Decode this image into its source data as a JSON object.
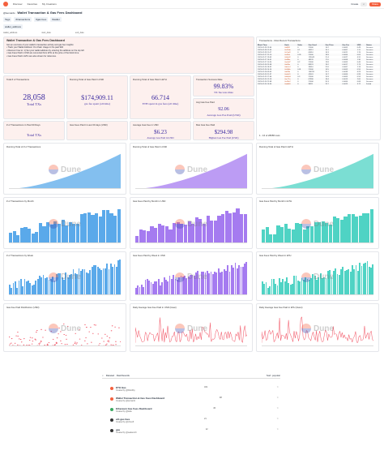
{
  "topbar": {
    "nav": [
      "Discover",
      "Favorites",
      "My Creations"
    ],
    "right": [
      "Create",
      "Share"
    ]
  },
  "header": {
    "author": "@leonardo",
    "title": "Wallet Transaction & Gas Fees Dashboard",
    "tags": [
      "Tags",
      "#transactions",
      "#gas fees",
      "#wallet"
    ],
    "params_label": "wallet_address"
  },
  "filters": [
    "wallet_address",
    "start_date",
    "end_date"
  ],
  "intro": {
    "title": "Wallet Transaction & Gas Fees Dashboard",
    "lines": [
      "Get an overview of your wallet's transaction activity and gas fee insights:",
      "• Track your Wallet Address' On-Chain Usage in the past 90d",
      "• Discover how to: 1) Set your wallet address by entering the address on the top left",
      "• Gas Fees Paid in USD are converted from ETH at the price of the block time",
      "• Gas Fees Paid in ETH are also shown for reference."
    ]
  },
  "kpis": [
    {
      "label": "Total # of Transactions",
      "value": "28,058",
      "sub": "Total TXs"
    },
    {
      "label": "Running Total of Gas Paid in USD",
      "value": "$174,909.11",
      "sub": "gas fee spent (all time)"
    },
    {
      "label": "Running Total of Gas Paid in ETH",
      "value": "66.714",
      "sub": "ETH spent in gas fees (all time)"
    },
    {
      "label": "Transaction Success Rate",
      "value": "99.83%",
      "sub": "TX Success Rate"
    },
    {
      "label": "Avg Gas Fee Paid",
      "value": "92.06",
      "sub": "Average Gas Fee Paid (USD)"
    },
    {
      "label": "Max Gas Fee Paid",
      "value": "$294.98",
      "sub": "Highest Gas Fee Paid (USD)"
    },
    {
      "label": "# of Transactions in Past 90 Days",
      "value": "",
      "sub": "Total TXs"
    },
    {
      "label": "Gas Fees Paid in Last 30 days (USD)",
      "value": "",
      "sub": ""
    },
    {
      "label": "Average Gas Fee in USD",
      "value": "$6.23",
      "sub": "Average Gas Paid in USD"
    }
  ],
  "table": {
    "title": "Transactions - Most Recent Transactions",
    "headers": [
      "Block Time",
      "Hash",
      "Value",
      "Gas Used",
      "Gas Price",
      "Gas Fee",
      "USD",
      "Status"
    ],
    "rows": [
      [
        "2023-02-28 13:04",
        "0x89f1",
        "0",
        "21000",
        "14.2",
        "0.0003",
        "0.49",
        "Success"
      ],
      [
        "2023-02-28 12:55",
        "0x12ab",
        "0.1",
        "44212",
        "15.1",
        "0.0007",
        "1.11",
        "Success"
      ],
      [
        "2023-02-28 11:47",
        "0x7cd3",
        "0",
        "65010",
        "16.3",
        "0.0011",
        "1.76",
        "Success"
      ],
      [
        "2023-02-27 22:10",
        "0x33ef",
        "0.05",
        "21000",
        "18.9",
        "0.0004",
        "0.63",
        "Success"
      ],
      [
        "2023-02-27 19:03",
        "0x9a02",
        "0",
        "125043",
        "21.4",
        "0.0027",
        "4.31",
        "Success"
      ],
      [
        "2023-02-27 16:51",
        "0x48bc",
        "0",
        "48120",
        "17.0",
        "0.0008",
        "1.30",
        "Success"
      ],
      [
        "2023-02-27 10:24",
        "0xe5d7",
        "0.2",
        "21000",
        "13.8",
        "0.0003",
        "0.46",
        "Success"
      ],
      [
        "2023-02-26 23:58",
        "0x06fa",
        "0",
        "89331",
        "19.2",
        "0.0017",
        "2.73",
        "Success"
      ],
      [
        "2023-02-26 18:32",
        "0xb1c4",
        "0",
        "33010",
        "22.6",
        "0.0007",
        "1.19",
        "Success"
      ],
      [
        "2023-02-26 14:14",
        "0x2d8e",
        "0.01",
        "21000",
        "16.5",
        "0.0003",
        "0.55",
        "Success"
      ],
      [
        "2023-02-26 09:45",
        "0xf09b",
        "0",
        "156220",
        "25.1",
        "0.0039",
        "6.29",
        "Success"
      ],
      [
        "2023-02-25 21:37",
        "0x4e51",
        "0",
        "42001",
        "14.7",
        "0.0006",
        "0.99",
        "Success"
      ],
      [
        "2023-02-25 17:06",
        "0x8a3d",
        "0.3",
        "21000",
        "15.9",
        "0.0003",
        "0.53",
        "Success"
      ],
      [
        "2023-02-25 12:19",
        "0xc77a",
        "0",
        "67990",
        "18.4",
        "0.0013",
        "2.00",
        "Success"
      ],
      [
        "2023-02-24 22:48",
        "0x19e2",
        "0",
        "21000",
        "20.3",
        "0.0004",
        "0.68",
        "Success"
      ],
      [
        "2023-02-24 16:30",
        "0xdb60",
        "0",
        "98111",
        "23.7",
        "0.0023",
        "3.72",
        "Failed"
      ]
    ],
    "footer": "1 - 16 of 28058 rows"
  },
  "charts": [
    {
      "title": "Running Total of # of Transactions",
      "color": "#5aa9ea",
      "kind": "area"
    },
    {
      "title": "Running Total of Gas Paid in USD",
      "color": "#a57bf0",
      "kind": "area"
    },
    {
      "title": "Running Total of Gas Paid in ETH",
      "color": "#4fd3c4",
      "kind": "area"
    },
    {
      "title": "# of Transactions by Month",
      "color": "#5aa9ea",
      "kind": "bar"
    },
    {
      "title": "Gas Fees Paid by Month in USD",
      "color": "#a57bf0",
      "kind": "bar"
    },
    {
      "title": "Gas Fees Paid by Month in ETH",
      "color": "#4fd3c4",
      "kind": "bar"
    },
    {
      "title": "# of Transactions by Week",
      "color": "#5aa9ea",
      "kind": "bar"
    },
    {
      "title": "Gas Fees Paid by Week in USD",
      "color": "#a57bf0",
      "kind": "bar"
    },
    {
      "title": "Gas Fees Paid by Week in ETH",
      "color": "#4fd3c4",
      "kind": "bar"
    },
    {
      "title": "Gas Fee Paid Distribution (USD)",
      "color": "#f25a6a",
      "kind": "scatter"
    },
    {
      "title": "Daily Average Gas Fee Paid in USD (Gwei)",
      "color": "#f25a6a",
      "kind": "line"
    },
    {
      "title": "Daily Average Gas Fee Paid in ETH (Gwei)",
      "color": "#f25a6a",
      "kind": "line"
    }
  ],
  "watermark": "Dune",
  "search": {
    "placeholder": "Related · Dashboards",
    "sort": "Sort: popular"
  },
  "related": [
    {
      "name": "ETH Gas",
      "author": "Created by @hildobby",
      "stat": "321",
      "color": "#f4603e"
    },
    {
      "name": "Wallet Transaction & Gas Fees Dashboard",
      "author": "Created by @leonardo",
      "stat": "98",
      "color": "#f4603e"
    },
    {
      "name": "Ethereum Gas Fees Dashboard",
      "author": "Created by @kalle",
      "stat": "45",
      "color": "#3aa860"
    },
    {
      "name": "eth gas fees",
      "author": "Created by @rchen8",
      "stat": "21",
      "color": "#333"
    },
    {
      "name": "gas",
      "author": "Created by @sealaunch",
      "stat": "12",
      "color": "#333"
    }
  ]
}
